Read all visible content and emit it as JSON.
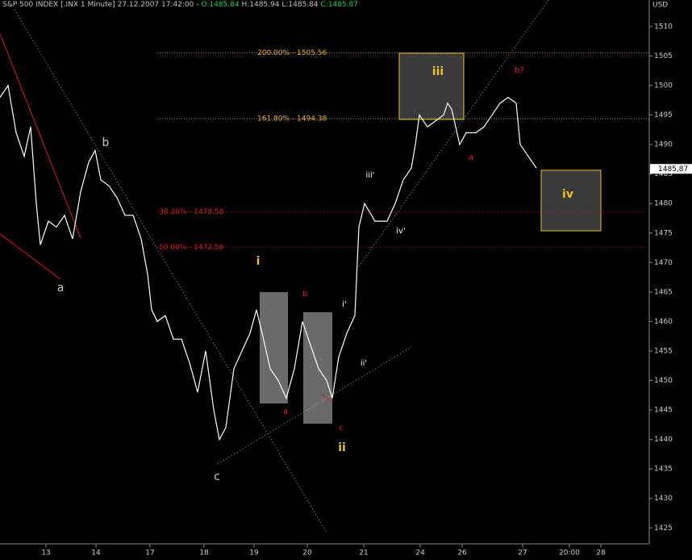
{
  "chart_data": {
    "type": "line",
    "header": {
      "instrument": "S&P 500 INDEX [.INX 1 Minute]",
      "datetime": "27.12.2007 17:42:00",
      "open": "O:1485.84",
      "high": "H:1485.94",
      "low": "L:1485.84",
      "close": "C:1485.87"
    },
    "currency": "USD",
    "last_price": 1485.87,
    "last_price_label": "1485,87",
    "x": [
      0,
      10,
      20,
      30,
      38,
      45,
      50,
      60,
      70,
      80,
      90,
      100,
      110,
      118,
      125,
      135,
      145,
      155,
      165,
      175,
      183,
      188,
      195,
      205,
      215,
      225,
      235,
      245,
      255,
      265,
      272,
      280,
      290,
      300,
      310,
      318,
      325,
      335,
      345,
      355,
      365,
      375,
      385,
      395,
      405,
      412,
      420,
      430,
      440,
      445,
      452,
      465,
      480,
      490,
      500,
      510,
      515,
      520,
      530,
      540,
      550,
      555,
      560,
      570,
      578,
      590,
      600,
      610,
      620,
      630,
      640,
      645,
      655,
      665
    ],
    "series": [
      {
        "name": "S&P 500 INDEX",
        "color": "#ffffff",
        "values": [
          1498,
          1500,
          1492,
          1488,
          1493,
          1480,
          1473,
          1477,
          1476,
          1478,
          1474,
          1482,
          1487,
          1489,
          1484,
          1483,
          1481,
          1478,
          1478,
          1474,
          1468,
          1462,
          1460,
          1461,
          1457,
          1457,
          1453,
          1448,
          1455,
          1445,
          1440,
          1442,
          1452,
          1455,
          1458,
          1462,
          1458,
          1452,
          1450,
          1447,
          1452,
          1460,
          1456,
          1452,
          1450,
          1447,
          1454,
          1458,
          1461,
          1476,
          1480,
          1477,
          1477,
          1480,
          1484,
          1486,
          1490,
          1495,
          1493,
          1494,
          1495,
          1497,
          1496,
          1490,
          1492,
          1492,
          1493,
          1495,
          1497,
          1498,
          1497,
          1490,
          1488,
          1486
        ]
      }
    ],
    "xlim": [
      0,
      800
    ],
    "xticks": [
      {
        "value": 57,
        "label": "13"
      },
      {
        "value": 119,
        "label": "14"
      },
      {
        "value": 186,
        "label": "17"
      },
      {
        "value": 253,
        "label": "18"
      },
      {
        "value": 315,
        "label": "19"
      },
      {
        "value": 381,
        "label": "20"
      },
      {
        "value": 451,
        "label": "21"
      },
      {
        "value": 521,
        "label": "24"
      },
      {
        "value": 573,
        "label": "26"
      },
      {
        "value": 648,
        "label": "27"
      },
      {
        "value": 706,
        "label": "20:00"
      },
      {
        "value": 745,
        "label": "28"
      }
    ],
    "ylim": [
      1422.3,
      1514.5
    ],
    "yticks": [
      1425,
      1430,
      1435,
      1440,
      1445,
      1450,
      1455,
      1460,
      1465,
      1470,
      1475,
      1480,
      1485,
      1490,
      1495,
      1500,
      1505,
      1510
    ],
    "levels": [
      {
        "value": 1505.56,
        "label": "200.00% - 1505.56",
        "color": "#e8b040"
      },
      {
        "value": 1494.38,
        "label": "161.80% - 1494.38",
        "color": "#e8b040"
      },
      {
        "value": 1478.58,
        "label": "38.20% - 1478.58",
        "color": "#d02020"
      },
      {
        "value": 1472.56,
        "label": "50.00% - 1472.56",
        "color": "#d02020"
      }
    ],
    "annotations": [
      {
        "text": "a",
        "color": "#c8c8c8"
      },
      {
        "text": "b",
        "color": "#c8c8c8"
      },
      {
        "text": "c",
        "color": "#c8c8c8"
      },
      {
        "text": "a",
        "color": "#e02020"
      },
      {
        "text": "b",
        "color": "#e02020"
      },
      {
        "text": "c",
        "color": "#e02020"
      },
      {
        "text": "i",
        "color": "#e8c020"
      },
      {
        "text": "ii",
        "color": "#e8c020"
      },
      {
        "text": "iii",
        "color": "#e8c020"
      },
      {
        "text": "iv",
        "color": "#e8c020"
      },
      {
        "text": "b?",
        "color": "#e02020"
      },
      {
        "text": "a",
        "color": "#e02020"
      },
      {
        "text": "i'",
        "color": "#ffffff"
      },
      {
        "text": "ii'",
        "color": "#ffffff"
      },
      {
        "text": "iii'",
        "color": "#ffffff"
      },
      {
        "text": "iv'",
        "color": "#ffffff"
      }
    ]
  }
}
